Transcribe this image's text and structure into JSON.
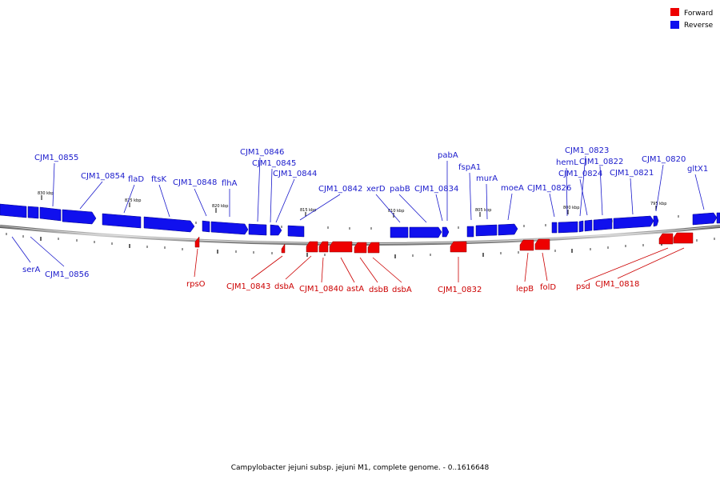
{
  "legend": {
    "forward_label": "Forward",
    "reverse_label": "Reverse",
    "forward_color": "#ee0000",
    "reverse_color": "#1010ee"
  },
  "caption": "Campylobacter jejuni subsp. jejuni M1, complete genome. - 0..1616648",
  "scale_labels": [
    "830 kbp",
    "825 kbp",
    "820 kbp",
    "815 kbp",
    "810 kbp",
    "805 kbp",
    "800 kbp",
    "795 kbp"
  ],
  "reverse_genes": [
    "CJM1_0855",
    "CJM1_0854",
    "flaD",
    "ftsK",
    "CJM1_0848",
    "flhA",
    "CJM1_0846",
    "CJM1_0845",
    "CJM1_0844",
    "CJM1_0842",
    "xerD",
    "pabB",
    "CJM1_0834",
    "pabA",
    "fspA1",
    "murA",
    "moeA",
    "CJM1_0826",
    "hemL",
    "CJM1_0823",
    "CJM1_0824",
    "CJM1_0822",
    "CJM1_0821",
    "CJM1_0820",
    "gltX1",
    "serA",
    "CJM1_0856"
  ],
  "forward_genes": [
    "rpsO",
    "CJM1_0843",
    "dsbA",
    "CJM1_0840",
    "astA",
    "dsbB",
    "dsbA",
    "CJM1_0832",
    "lepB",
    "folD",
    "psd",
    "CJM1_0818"
  ]
}
